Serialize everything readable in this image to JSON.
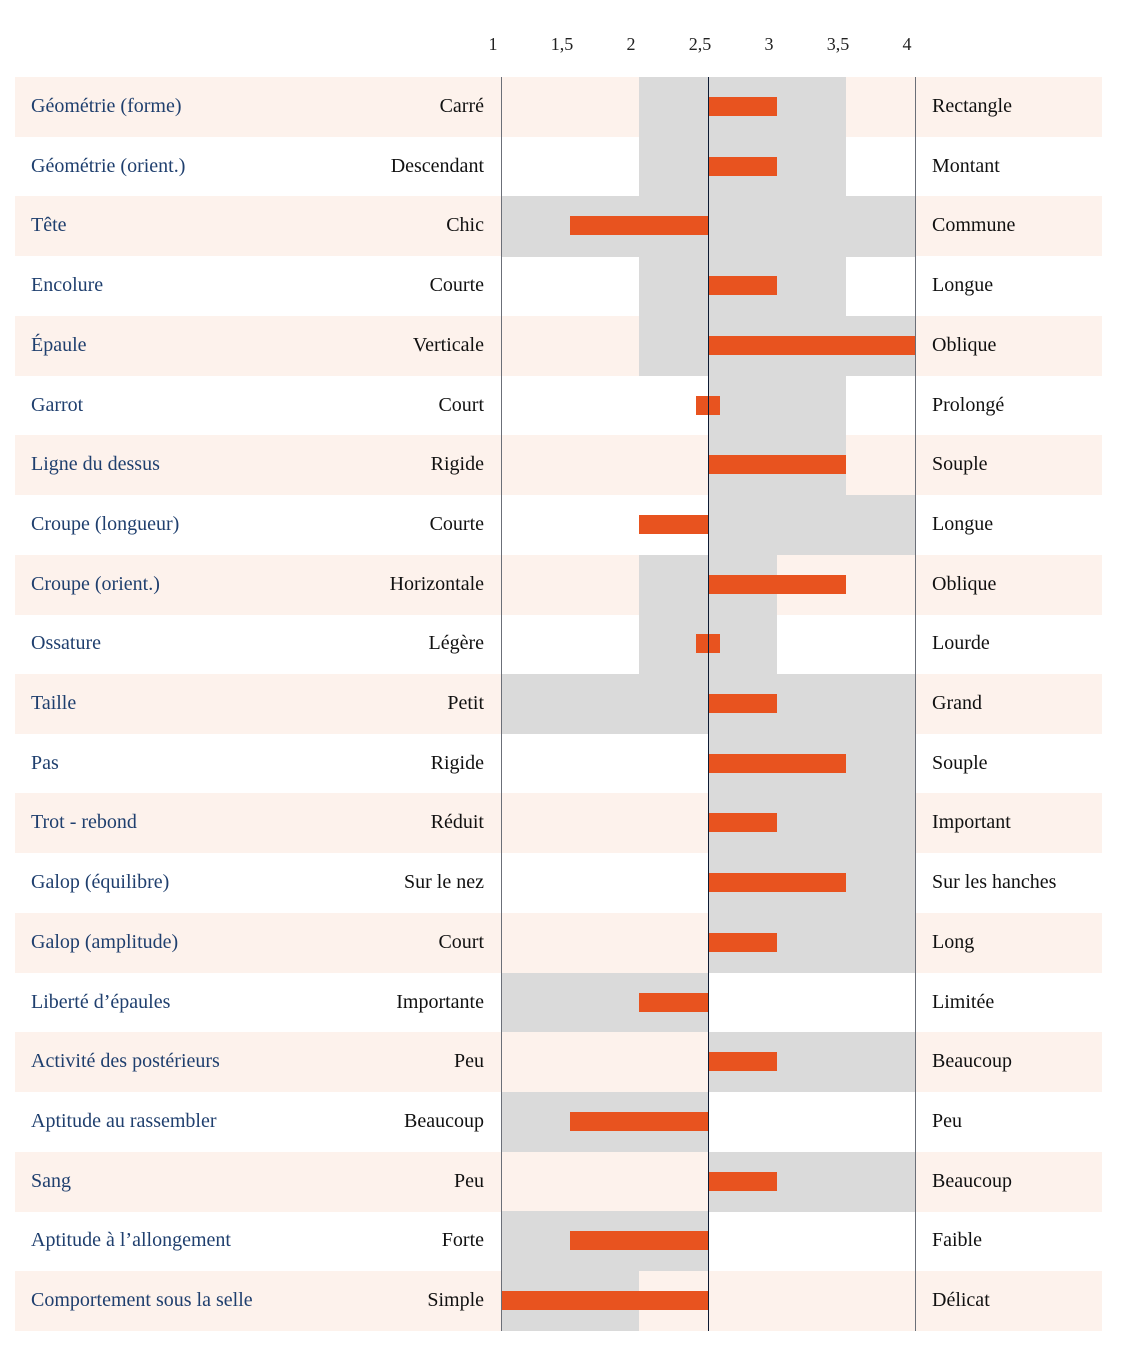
{
  "chart_data": {
    "type": "bar",
    "xlim": [
      1,
      4
    ],
    "center": 2.5,
    "ticks": [
      "1",
      "1,5",
      "2",
      "2,5",
      "3",
      "3,5",
      "4"
    ],
    "tick_values": [
      1,
      1.5,
      2,
      2.5,
      3,
      3.5,
      4
    ],
    "colors": {
      "bar": "#e8531f",
      "band": "#dadada",
      "row_alt": "#fdf2ec",
      "label": "#1f3f6e"
    },
    "rows": [
      {
        "label": "Géométrie (forme)",
        "left": "Carré",
        "right": "Rectangle",
        "value": 3,
        "range": [
          2,
          3.5
        ]
      },
      {
        "label": "Géométrie (orient.)",
        "left": "Descendant",
        "right": "Montant",
        "value": 3,
        "range": [
          2,
          3.5
        ]
      },
      {
        "label": "Tête",
        "left": "Chic",
        "right": "Commune",
        "value": 1.5,
        "range": [
          1,
          4
        ]
      },
      {
        "label": "Encolure",
        "left": "Courte",
        "right": "Longue",
        "value": 3,
        "range": [
          2,
          3.5
        ]
      },
      {
        "label": "Épaule",
        "left": "Verticale",
        "right": "Oblique",
        "value": 4,
        "range": [
          2,
          4
        ]
      },
      {
        "label": "Garrot",
        "left": "Court",
        "right": "Prolongé",
        "value": 2.5,
        "range": [
          2.5,
          3.5
        ]
      },
      {
        "label": "Ligne du dessus",
        "left": "Rigide",
        "right": "Souple",
        "value": 3.5,
        "range": [
          2.5,
          3.5
        ]
      },
      {
        "label": "Croupe (longueur)",
        "left": "Courte",
        "right": "Longue",
        "value": 2,
        "range": [
          2.5,
          4
        ]
      },
      {
        "label": "Croupe (orient.)",
        "left": "Horizontale",
        "right": "Oblique",
        "value": 3.5,
        "range": [
          2,
          3
        ]
      },
      {
        "label": "Ossature",
        "left": "Légère",
        "right": "Lourde",
        "value": 2.5,
        "range": [
          2,
          3
        ]
      },
      {
        "label": "Taille",
        "left": "Petit",
        "right": "Grand",
        "value": 3,
        "range": [
          1,
          4
        ]
      },
      {
        "label": "Pas",
        "left": "Rigide",
        "right": "Souple",
        "value": 3.5,
        "range": [
          2.5,
          4
        ]
      },
      {
        "label": "Trot - rebond",
        "left": "Réduit",
        "right": "Important",
        "value": 3,
        "range": [
          2.5,
          4
        ]
      },
      {
        "label": "Galop (équilibre)",
        "left": "Sur le nez",
        "right": "Sur les hanches",
        "value": 3.5,
        "range": [
          2.5,
          4
        ]
      },
      {
        "label": "Galop (amplitude)",
        "left": "Court",
        "right": "Long",
        "value": 3,
        "range": [
          2.5,
          4
        ]
      },
      {
        "label": "Liberté d’épaules",
        "left": "Importante",
        "right": "Limitée",
        "value": 2,
        "range": [
          1,
          2.5
        ]
      },
      {
        "label": "Activité des postérieurs",
        "left": "Peu",
        "right": "Beaucoup",
        "value": 3,
        "range": [
          2.5,
          4
        ]
      },
      {
        "label": "Aptitude au rassembler",
        "left": "Beaucoup",
        "right": "Peu",
        "value": 1.5,
        "range": [
          1,
          2.5
        ]
      },
      {
        "label": "Sang",
        "left": "Peu",
        "right": "Beaucoup",
        "value": 3,
        "range": [
          2.5,
          4
        ]
      },
      {
        "label": "Aptitude à l’allongement",
        "left": "Forte",
        "right": "Faible",
        "value": 1.5,
        "range": [
          1,
          2.5
        ]
      },
      {
        "label": "Comportement sous la selle",
        "left": "Simple",
        "right": "Délicat",
        "value": 1,
        "range": [
          1,
          2
        ]
      }
    ]
  }
}
